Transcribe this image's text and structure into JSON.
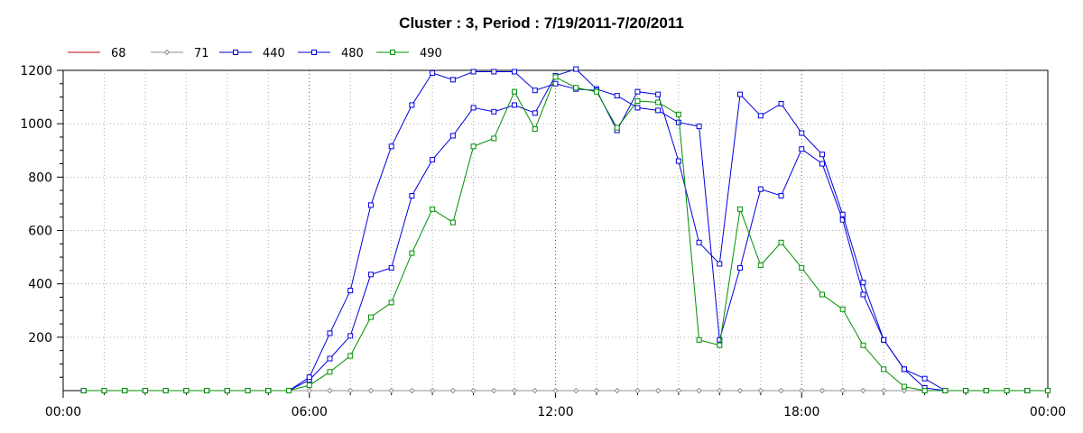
{
  "chart_data": {
    "type": "line",
    "title": "Cluster : 3, Period : 7/19/2011-7/20/2011",
    "xlabel": "",
    "ylabel": "",
    "x_ticks": [
      "00:00",
      "06:00",
      "12:00",
      "18:00",
      "00:00"
    ],
    "x_range_hours": [
      0,
      24
    ],
    "y_ticks": [
      "200",
      "400",
      "600",
      "800",
      "1000",
      "1200"
    ],
    "ylim": [
      0,
      1200
    ],
    "grid": true,
    "legend_position": "top-left",
    "x": [
      0.5,
      1,
      1.5,
      2,
      2.5,
      3,
      3.5,
      4,
      4.5,
      5,
      5.5,
      6,
      6.5,
      7,
      7.5,
      8,
      8.5,
      9,
      9.5,
      10,
      10.5,
      11,
      11.5,
      12,
      12.5,
      13,
      13.5,
      14,
      14.5,
      15,
      15.5,
      16,
      16.5,
      17,
      17.5,
      18,
      18.5,
      19,
      19.5,
      20,
      20.5,
      21,
      21.5,
      22,
      22.5,
      23,
      23.5,
      24
    ],
    "series": [
      {
        "name": "68",
        "color": "#c00000",
        "marker": "none",
        "values": [
          0,
          0,
          0,
          0,
          0,
          0,
          0,
          0,
          0,
          0,
          0,
          0,
          0,
          0,
          0,
          0,
          0,
          0,
          0,
          0,
          0,
          0,
          0,
          0,
          0,
          0,
          0,
          0,
          0,
          0,
          0,
          0,
          0,
          0,
          0,
          0,
          0,
          0,
          0,
          0,
          0,
          0,
          0,
          0,
          0,
          0,
          0,
          0
        ]
      },
      {
        "name": "71",
        "color": "#909090",
        "marker": "diamond",
        "values": [
          0,
          0,
          0,
          0,
          0,
          0,
          0,
          0,
          0,
          0,
          0,
          0,
          0,
          0,
          0,
          0,
          0,
          0,
          0,
          0,
          0,
          0,
          0,
          0,
          0,
          0,
          0,
          0,
          0,
          0,
          0,
          0,
          0,
          0,
          0,
          0,
          0,
          0,
          0,
          0,
          0,
          0,
          0,
          0,
          0,
          0,
          0,
          0
        ]
      },
      {
        "name": "440",
        "color": "#0000e0",
        "marker": "square",
        "values": [
          0,
          0,
          0,
          0,
          0,
          0,
          0,
          0,
          0,
          0,
          0,
          40,
          120,
          205,
          435,
          460,
          730,
          865,
          955,
          1060,
          1045,
          1070,
          1040,
          1180,
          1205,
          1130,
          1105,
          1060,
          1050,
          1005,
          990,
          190,
          460,
          755,
          730,
          905,
          850,
          640,
          360,
          190,
          80,
          10,
          0,
          0,
          0,
          0,
          0,
          0
        ]
      },
      {
        "name": "480",
        "color": "#0000e0",
        "marker": "square",
        "values": [
          0,
          0,
          0,
          0,
          0,
          0,
          0,
          0,
          0,
          0,
          0,
          50,
          215,
          375,
          695,
          915,
          1070,
          1190,
          1165,
          1195,
          1195,
          1195,
          1125,
          1150,
          1130,
          1125,
          975,
          1120,
          1110,
          860,
          555,
          475,
          1110,
          1030,
          1075,
          965,
          885,
          660,
          405,
          190,
          80,
          45,
          0,
          0,
          0,
          0,
          0,
          0
        ]
      },
      {
        "name": "490",
        "color": "#009000",
        "marker": "square",
        "values": [
          0,
          0,
          0,
          0,
          0,
          0,
          0,
          0,
          0,
          0,
          0,
          20,
          70,
          130,
          275,
          330,
          515,
          680,
          630,
          915,
          945,
          1120,
          980,
          1175,
          1135,
          1120,
          985,
          1085,
          1080,
          1035,
          190,
          170,
          680,
          470,
          555,
          460,
          360,
          305,
          170,
          80,
          15,
          0,
          0,
          0,
          0,
          0,
          0,
          0
        ]
      }
    ]
  }
}
